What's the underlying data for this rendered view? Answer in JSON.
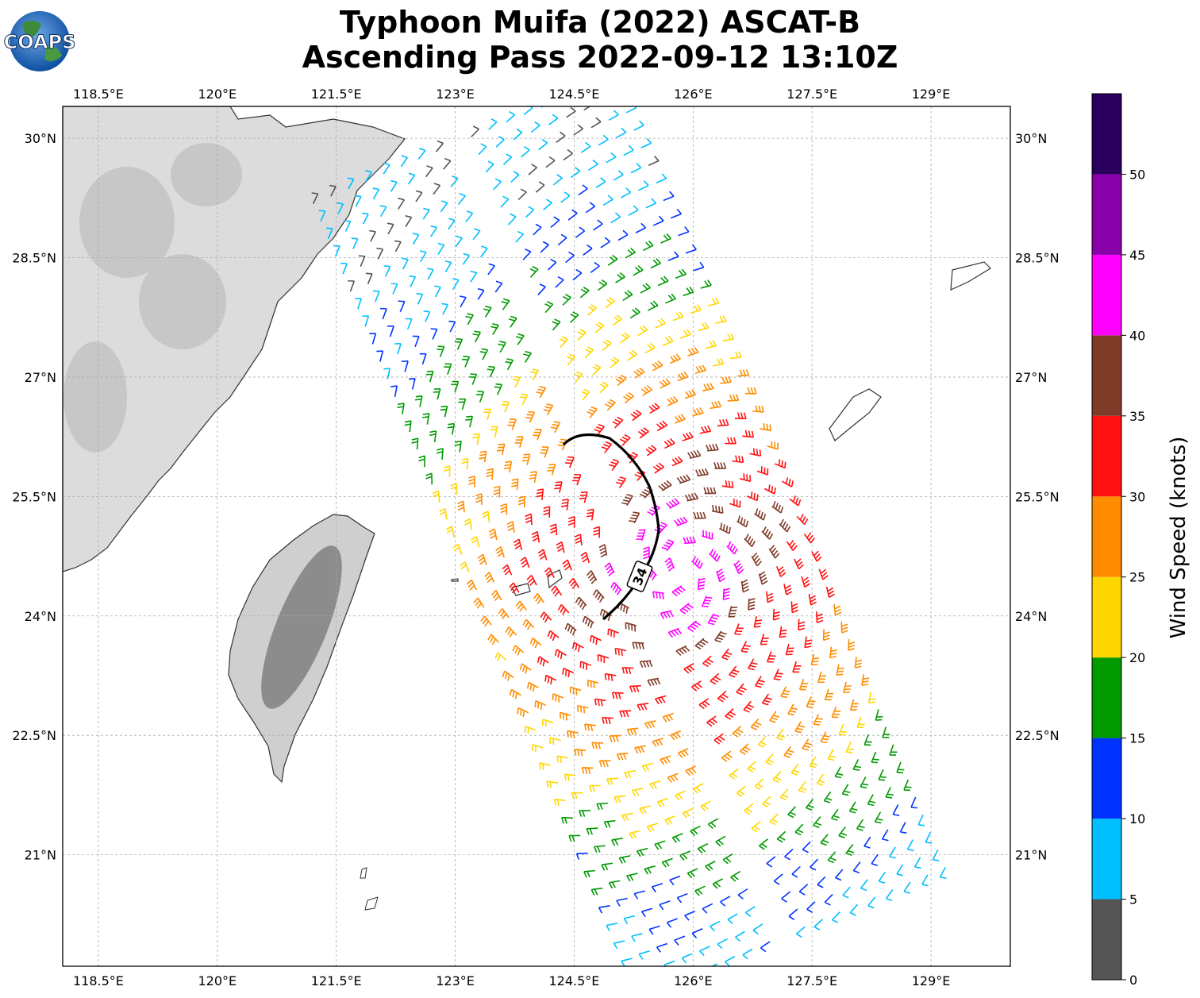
{
  "title": {
    "line1": "Typhoon Muifa (2022) ASCAT-B",
    "line2": "Ascending Pass 2022-09-12 13:10Z"
  },
  "logo": {
    "text": "COAPS"
  },
  "map": {
    "lon_range": [
      118.05,
      130.0
    ],
    "lat_range": [
      19.6,
      30.4
    ],
    "lon_ticks": [
      "118.5°E",
      "120°E",
      "121.5°E",
      "123°E",
      "124.5°E",
      "126°E",
      "127.5°E",
      "129°E"
    ],
    "lon_tick_values": [
      118.5,
      120,
      121.5,
      123,
      124.5,
      126,
      127.5,
      129
    ],
    "lat_ticks": [
      "30°N",
      "28.5°N",
      "27°N",
      "25.5°N",
      "24°N",
      "22.5°N",
      "21°N"
    ],
    "lat_tick_values": [
      30,
      28.5,
      27,
      25.5,
      24,
      22.5,
      21
    ],
    "grid": true,
    "typhoon_center": {
      "lon": 125.8,
      "lat": 24.6
    },
    "radius_label": "34",
    "colors": {
      "land_terrain": "#c8c8c8",
      "coastline": "#333333",
      "gridline": "#aaaaaa",
      "radius_line": "#000000"
    }
  },
  "colorbar": {
    "label": "Wind Speed (knots)",
    "ticks": [
      "0",
      "5",
      "10",
      "15",
      "20",
      "25",
      "30",
      "35",
      "40",
      "45",
      "50"
    ],
    "bins": [
      {
        "min": 0,
        "max": 5,
        "color": "#555555"
      },
      {
        "min": 5,
        "max": 10,
        "color": "#00bfff"
      },
      {
        "min": 10,
        "max": 15,
        "color": "#0033ff"
      },
      {
        "min": 15,
        "max": 20,
        "color": "#009900"
      },
      {
        "min": 20,
        "max": 25,
        "color": "#ffd700"
      },
      {
        "min": 25,
        "max": 30,
        "color": "#ff8c00"
      },
      {
        "min": 30,
        "max": 35,
        "color": "#ff1111"
      },
      {
        "min": 35,
        "max": 40,
        "color": "#803a28"
      },
      {
        "min": 40,
        "max": 45,
        "color": "#ff00ff"
      },
      {
        "min": 45,
        "max": 50,
        "color": "#8800aa"
      },
      {
        "min": 50,
        "max": 55,
        "color": "#2a005e"
      }
    ]
  }
}
